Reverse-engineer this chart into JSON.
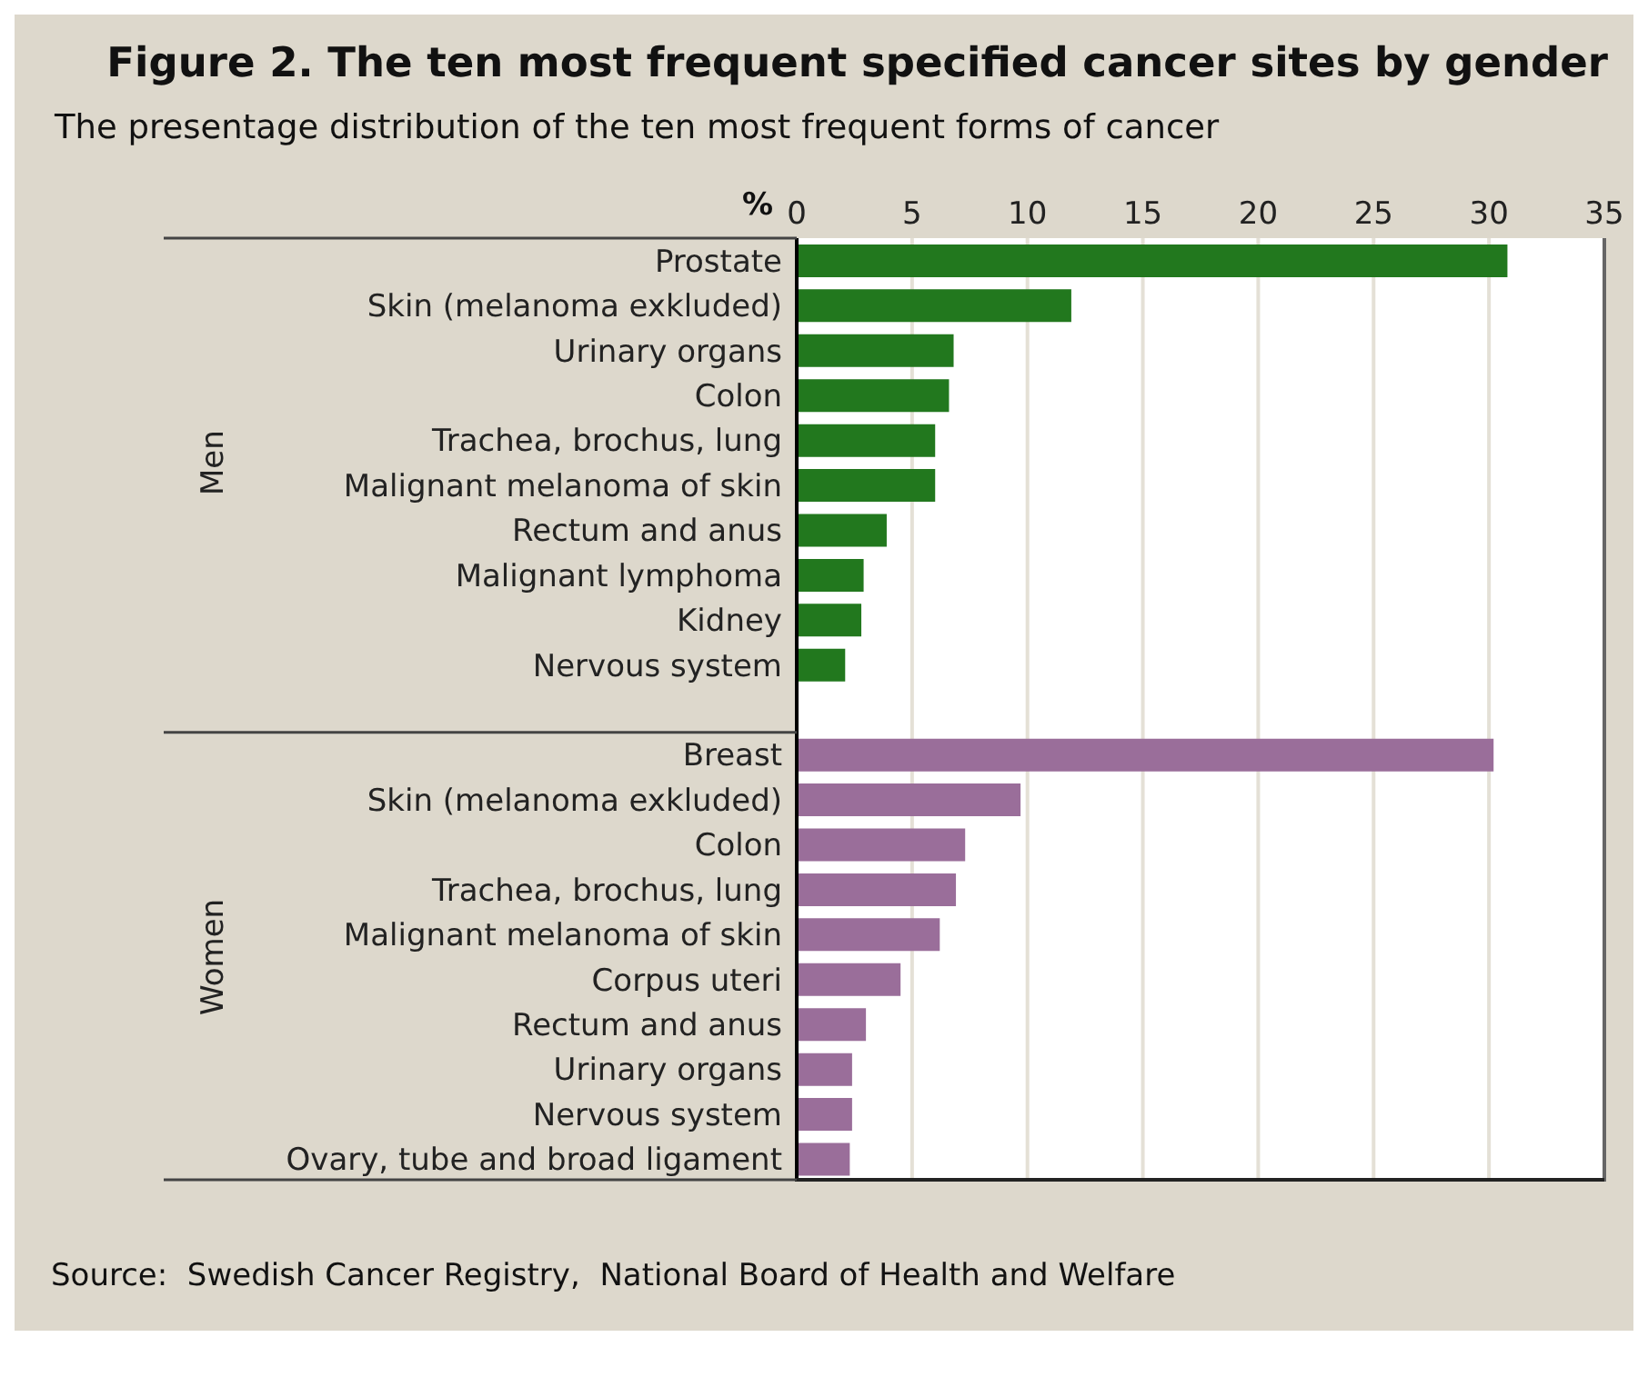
{
  "chart_data": {
    "type": "bar",
    "orientation": "horizontal",
    "title": "Figure 2. The ten most frequent specified cancer sites by gender",
    "subtitle": "The presentage distribution of the ten most frequent forms of cancer",
    "xlabel": "%",
    "annotations": [
      "Men",
      "Women",
      "Source:  Swedish Cancer Registry,  National Board of Health and Welfare"
    ],
    "categories": [
      "Prostate",
      "Skin (melanoma exkluded)",
      "Urinary organs",
      "Colon",
      "Trachea, brochus, lung",
      "Malignant melanoma of skin",
      "Rectum and anus",
      "Malignant lymphoma",
      "Kidney",
      "Nervous system",
      null,
      "Breast",
      "Skin (melanoma exkluded)",
      "Colon",
      "Trachea, brochus, lung",
      "Malignant melanoma of skin",
      "Corpus uteri",
      "Rectum and anus",
      "Urinary organs",
      "Nervous system",
      "Ovary, tube and broad ligament"
    ],
    "values": [
      30.8,
      11.9,
      6.8,
      6.6,
      6.0,
      6.0,
      3.9,
      2.9,
      2.8,
      2.1,
      null,
      30.2,
      9.7,
      7.3,
      6.9,
      6.2,
      4.5,
      3.0,
      2.4,
      2.4,
      2.3
    ],
    "colors": [
      "#22781e",
      "#22781e",
      "#22781e",
      "#22781e",
      "#22781e",
      "#22781e",
      "#22781e",
      "#22781e",
      "#22781e",
      "#22781e",
      null,
      "#9a6e9a",
      "#9a6e9a",
      "#9a6e9a",
      "#9a6e9a",
      "#9a6e9a",
      "#9a6e9a",
      "#9a6e9a",
      "#9a6e9a",
      "#9a6e9a",
      "#9a6e9a"
    ],
    "xlim": [
      0,
      35
    ],
    "xticks": [
      0,
      5,
      10,
      15,
      20,
      25,
      30,
      35
    ],
    "grid": "x"
  }
}
